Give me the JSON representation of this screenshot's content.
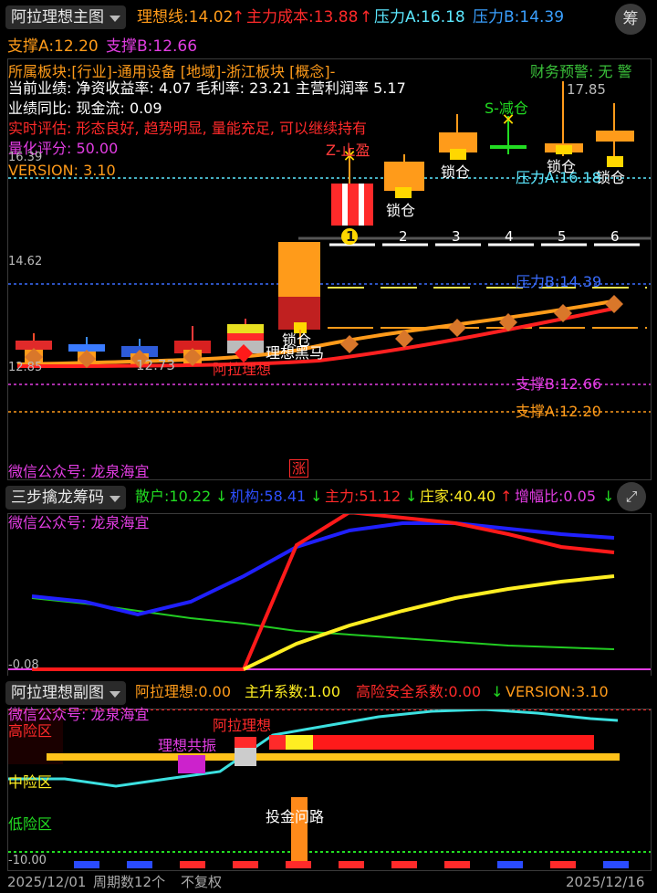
{
  "main": {
    "selector_label": "阿拉理想主图",
    "ideal_line": "理想线:14.02",
    "main_cost": "主力成本:13.88",
    "pressure_a": "压力A:16.18",
    "pressure_b": "压力B:14.39",
    "chip_button": "筹",
    "support_a": "支撑A:12.20",
    "support_b": "支撑B:12.66"
  },
  "info": {
    "sector": "所属板块:[行业]-通用设备 [地域]-浙江板块 [概念]-",
    "warning": "财务预警: 无 警",
    "performance": "当前业绩: 净资收益率: 4.07 毛利率: 23.21 主营利润率 5.17",
    "yoy": "业绩同比: 现金流: 0.09",
    "realtime": "实时评估: 形态良好, 趋势明显, 量能充足, 可以继续持有",
    "score": "量化评分: 50.00",
    "version": "VERSION: 3.10"
  },
  "price_labels": {
    "p1": "16.39",
    "p2": "14.62",
    "p3": "12.85",
    "high": "17.85",
    "low": "12.73"
  },
  "annotations": {
    "take_profit": "Z-止盈",
    "reduce": "S-减仓",
    "lock": "锁仓",
    "dark_horse": "理想黑马",
    "ideal": "阿拉理想",
    "pressure_a_line": "压力A:16.18",
    "pressure_b_line": "压力B:14.39",
    "support_b_line": "支撑B:12.66",
    "support_a_line": "支撑A:12.20",
    "wechat": "微信公众号: 龙泉海宜",
    "limit_up": "涨",
    "days": [
      "1",
      "2",
      "3",
      "4",
      "5",
      "6"
    ]
  },
  "chip": {
    "selector_label": "三步擒龙筹码",
    "retail": "散户:10.22",
    "institution": "机构:58.41",
    "main": "主力:51.12",
    "banker": "庄家:40.40",
    "growth": "增幅比:0.05",
    "wechat": "微信公众号: 龙泉海宜",
    "axis_low": "-0.08"
  },
  "sub": {
    "selector_label": "阿拉理想副图",
    "ideal": "阿拉理想:0.00",
    "rise": "主升系数:1.00",
    "risk": "高险安全系数:0.00",
    "version": "VERSION:3.10",
    "wechat": "微信公众号: 龙泉海宜",
    "high_risk": "高险区",
    "mid_risk": "中险区",
    "low_risk": "低险区",
    "resonance": "理想共振",
    "ideal_mark": "阿拉理想",
    "invest": "投金问路",
    "axis_low": "-10.00"
  },
  "footer": {
    "start_date": "2025/12/01",
    "period_count": "周期数12个",
    "adjust": "不复权",
    "end_date": "2025/12/16"
  },
  "colors": {
    "orange": "#ff9b1a",
    "red": "#ff2a2a",
    "cyan": "#5ce8ff",
    "blue": "#3aa0ff",
    "magenta": "#e23de2",
    "yellow": "#ffee22",
    "green": "#22dd22"
  }
}
